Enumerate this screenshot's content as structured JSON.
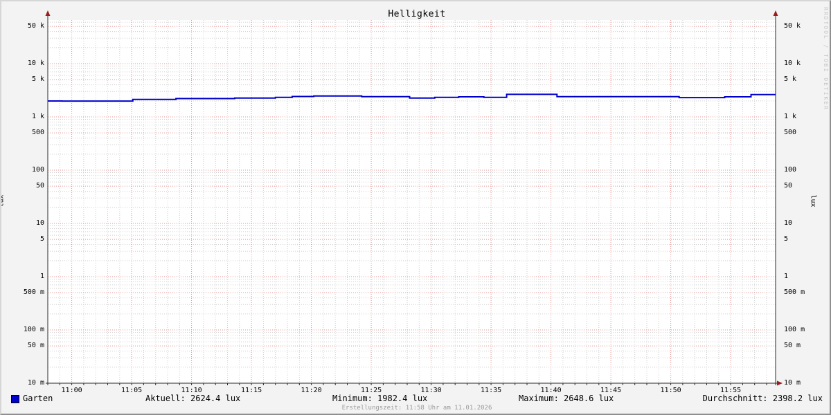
{
  "title": "Helligkeit",
  "watermark": "RRDTOOL / TOBI OETIKER",
  "footer": "Erstellungszeit: 11:58 Uhr am 11.01.2026",
  "y_axis": {
    "left_label": "lux",
    "right_label": "lux",
    "ticks": [
      {
        "value": 50000,
        "label": "50 k"
      },
      {
        "value": 10000,
        "label": "10 k"
      },
      {
        "value": 5000,
        "label": "5 k"
      },
      {
        "value": 1000,
        "label": "1 k"
      },
      {
        "value": 500,
        "label": "500"
      },
      {
        "value": 100,
        "label": "100"
      },
      {
        "value": 50,
        "label": "50"
      },
      {
        "value": 10,
        "label": "10"
      },
      {
        "value": 5,
        "label": "5"
      },
      {
        "value": 1,
        "label": "1"
      },
      {
        "value": 0.5,
        "label": "500 m"
      },
      {
        "value": 0.1,
        "label": "100 m"
      },
      {
        "value": 0.05,
        "label": "50 m"
      },
      {
        "value": 0.01,
        "label": "10 m"
      }
    ]
  },
  "x_axis": {
    "ticks": [
      {
        "minute": 2,
        "label": "11:00"
      },
      {
        "minute": 7,
        "label": "11:05"
      },
      {
        "minute": 12,
        "label": "11:10"
      },
      {
        "minute": 17,
        "label": "11:15"
      },
      {
        "minute": 22,
        "label": "11:20"
      },
      {
        "minute": 27,
        "label": "11:25"
      },
      {
        "minute": 32,
        "label": "11:30"
      },
      {
        "minute": 37,
        "label": "11:35"
      },
      {
        "minute": 42,
        "label": "11:40"
      },
      {
        "minute": 47,
        "label": "11:45"
      },
      {
        "minute": 52,
        "label": "11:50"
      },
      {
        "minute": 57,
        "label": "11:55"
      }
    ]
  },
  "legend": {
    "series_label": "Garten",
    "aktuell": "Aktuell: 2624.4 lux",
    "minimum": "Minimum: 1982.4 lux",
    "maximum": "Maximum: 2648.6 lux",
    "durchschnitt": "Durchschnitt: 2398.2 lux"
  },
  "colors": {
    "series": "#0000cc",
    "plot_background": "#ffffff",
    "canvas_background": "#f3f3f3",
    "major_grid": "#e89090",
    "minor_grid": "#cfcfcf",
    "axis": "#2b2b2b",
    "arrow": "#9b1c1c"
  },
  "chart_data": {
    "type": "line",
    "title": "Helligkeit",
    "ylabel": "lux",
    "yscale": "log",
    "ylim": [
      0.01,
      66000
    ],
    "x_window": {
      "start": "10:58",
      "end": "11:59"
    },
    "x_unit": "minutes since 10:58",
    "grid": true,
    "legend_position": "bottom",
    "series": [
      {
        "name": "Garten",
        "color": "#0000cc",
        "step": true,
        "points": [
          [
            0,
            1990
          ],
          [
            1.2,
            1982
          ],
          [
            7.1,
            2130
          ],
          [
            10.7,
            2210
          ],
          [
            15.6,
            2260
          ],
          [
            19,
            2330
          ],
          [
            20.4,
            2415
          ],
          [
            22.2,
            2475
          ],
          [
            26.2,
            2400
          ],
          [
            30.2,
            2260
          ],
          [
            32.3,
            2330
          ],
          [
            34.3,
            2380
          ],
          [
            36.4,
            2330
          ],
          [
            38.3,
            2648
          ],
          [
            42.5,
            2400
          ],
          [
            52.7,
            2300
          ],
          [
            56.5,
            2380
          ],
          [
            58.7,
            2624
          ],
          [
            60.75,
            2624.4
          ]
        ]
      }
    ],
    "stats": {
      "aktuell": 2624.4,
      "minimum": 1982.4,
      "maximum": 2648.6,
      "durchschnitt": 2398.2
    }
  }
}
